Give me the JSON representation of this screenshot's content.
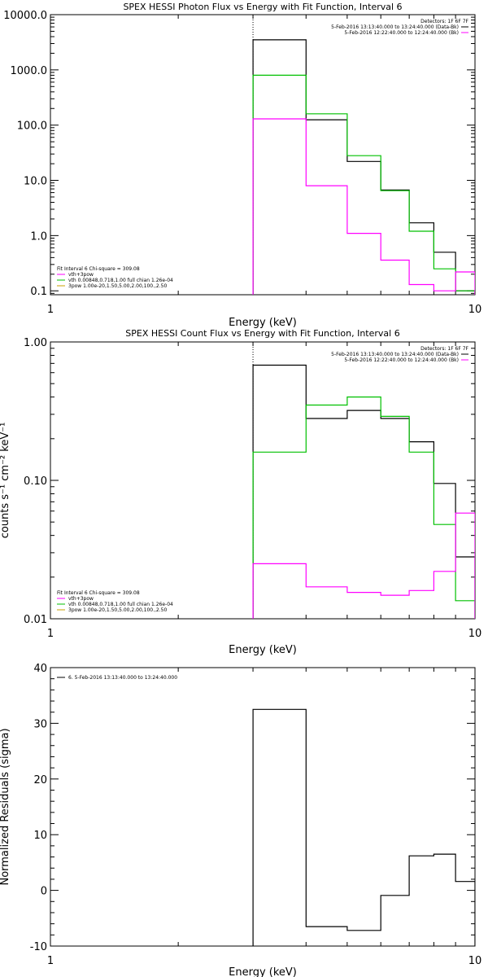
{
  "chart_data": [
    {
      "type": "line",
      "title": "SPEX HESSI Photon Flux vs Energy with Fit Function, Interval 6",
      "xlabel": "Energy (keV)",
      "ylabel": "",
      "x_scale": "log",
      "y_scale": "log",
      "xlim": [
        1,
        10
      ],
      "ylim": [
        0.085,
        10000
      ],
      "x_ticks": [
        {
          "v": 1,
          "label": "1"
        },
        {
          "v": 10,
          "label": "10"
        }
      ],
      "y_ticks": [
        {
          "v": 10000,
          "label": "10000.0"
        },
        {
          "v": 1000,
          "label": "1000.0"
        },
        {
          "v": 100,
          "label": "100.0"
        },
        {
          "v": 10,
          "label": "10.0"
        },
        {
          "v": 1,
          "label": "1.0"
        },
        {
          "v": 0.1,
          "label": "0.1"
        }
      ],
      "vline_x": 3.0,
      "legend_right": {
        "header": "Detectors: 1F 6F 7F",
        "entries": [
          {
            "text": "5-Feb-2016 13:13:40.000 to 13:24:40.000 (Data-Bk)",
            "color": "#000000"
          },
          {
            "text": "5-Feb-2016 12:22:40.000 to 12:24:40.000 (Bk)",
            "color": "#ff00ff"
          }
        ]
      },
      "legend_left": {
        "header": "Fit Interval 6   Chi-square = 309.08",
        "entries": [
          {
            "text": "vth+3pow",
            "color": "#ff00ff"
          },
          {
            "text": "vth 0.00848,0.718,1.00  full chian 1.26e-04",
            "color": "#00c000"
          },
          {
            "text": "3pow 1.00e-20,1.50,5.00,2.00,100.,2.50",
            "color": "#c8a000"
          }
        ]
      },
      "bin_edges": [
        3.0,
        4.0,
        5.0,
        6.0,
        7.0,
        8.0,
        9.0,
        10.0
      ],
      "series": [
        {
          "color": "#000000",
          "values": [
            3500,
            125,
            22,
            6.7,
            1.7,
            0.5,
            0.1
          ]
        },
        {
          "color": "#00c000",
          "values": [
            800,
            160,
            28,
            6.5,
            1.2,
            0.25,
            0.1
          ]
        },
        {
          "color": "#ff00ff",
          "values": [
            130,
            8,
            1.1,
            0.36,
            0.13,
            0.1,
            0.22
          ]
        }
      ]
    },
    {
      "type": "line",
      "title": "SPEX HESSI Count Flux vs Energy with Fit Function, Interval 6",
      "xlabel": "Energy (keV)",
      "ylabel": "counts s⁻¹ cm⁻² keV⁻¹",
      "x_scale": "log",
      "y_scale": "log",
      "xlim": [
        1,
        10
      ],
      "ylim": [
        0.01,
        1.0
      ],
      "x_ticks": [
        {
          "v": 1,
          "label": "1"
        },
        {
          "v": 10,
          "label": "10"
        }
      ],
      "y_ticks": [
        {
          "v": 1,
          "label": "1.00"
        },
        {
          "v": 0.1,
          "label": "0.10"
        },
        {
          "v": 0.01,
          "label": "0.01"
        }
      ],
      "vline_x": 3.0,
      "legend_right": {
        "header": "Detectors: 1F 6F 7F",
        "entries": [
          {
            "text": "5-Feb-2016 13:13:40.000 to 13:24:40.000 (Data-Bk)",
            "color": "#000000"
          },
          {
            "text": "5-Feb-2016 12:22:40.000 to 12:24:40.000 (Bk)",
            "color": "#ff00ff"
          }
        ]
      },
      "legend_left": {
        "header": "Fit Interval 6   Chi-square = 309.08",
        "entries": [
          {
            "text": "vth+3pow",
            "color": "#ff00ff"
          },
          {
            "text": "vth 0.00848,0.718,1.00  full chian 1.26e-04",
            "color": "#00c000"
          },
          {
            "text": "3pow 1.00e-20,1.50,5.00,2.00,100.,2.50",
            "color": "#c8a000"
          }
        ]
      },
      "bin_edges": [
        3.0,
        4.0,
        5.0,
        6.0,
        7.0,
        8.0,
        9.0,
        10.0
      ],
      "series": [
        {
          "color": "#000000",
          "values": [
            0.68,
            0.28,
            0.32,
            0.28,
            0.19,
            0.095,
            0.028
          ]
        },
        {
          "color": "#00c000",
          "values": [
            0.16,
            0.35,
            0.4,
            0.29,
            0.16,
            0.048,
            0.0135
          ]
        },
        {
          "color": "#ff00ff",
          "values": [
            0.025,
            0.017,
            0.0155,
            0.0148,
            0.016,
            0.022,
            0.058
          ]
        }
      ]
    },
    {
      "type": "line",
      "title": "",
      "xlabel": "Energy (keV)",
      "ylabel": "Normalized Residuals (sigma)",
      "x_scale": "log",
      "y_scale": "linear",
      "xlim": [
        1,
        10
      ],
      "ylim": [
        -10,
        40
      ],
      "x_ticks": [
        {
          "v": 1,
          "label": "1"
        },
        {
          "v": 10,
          "label": "10"
        }
      ],
      "y_ticks": [
        {
          "v": 40,
          "label": "40"
        },
        {
          "v": 30,
          "label": "30"
        },
        {
          "v": 20,
          "label": "20"
        },
        {
          "v": 10,
          "label": "10"
        },
        {
          "v": 0,
          "label": "0"
        },
        {
          "v": -10,
          "label": "-10"
        }
      ],
      "legend_left": {
        "header": "",
        "entries": [
          {
            "text": "6.  5-Feb-2016 13:13:40.000 to 13:24:40.000",
            "color": "#000000"
          }
        ]
      },
      "bin_edges": [
        3.0,
        4.0,
        5.0,
        6.0,
        7.0,
        8.0,
        9.0,
        10.0
      ],
      "series": [
        {
          "color": "#000000",
          "values": [
            32.5,
            -6.5,
            -7.2,
            -0.9,
            6.2,
            6.5,
            1.6
          ]
        }
      ]
    }
  ]
}
